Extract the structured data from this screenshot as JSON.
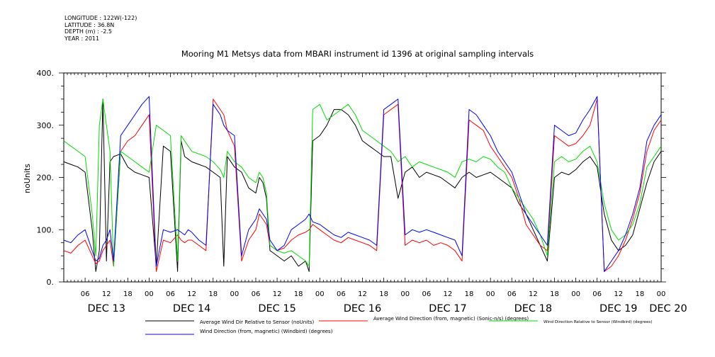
{
  "header": {
    "longitude": "LONGITUDE : 122W(-122)",
    "latitude": "LATITUDE : 36.8N",
    "depth": "DEPTH (m) : -2.5",
    "year": "YEAR : 2011",
    "title": "Mooring M1 Metsys data from MBARI instrument id 1396 at original sampling intervals"
  },
  "colors": {
    "black": "#000000",
    "red": "#ff0000",
    "green": "#00dd00",
    "blue": "#0000ff"
  },
  "chart_data": {
    "type": "line",
    "title": "Mooring M1 Metsys data from MBARI instrument id 1396 at original sampling intervals",
    "ylabel": "noUnits",
    "ylim": [
      0,
      400
    ],
    "y_ticks": [
      "0.",
      "100.",
      "200.",
      "300.",
      "400."
    ],
    "xlim_hours": [
      0,
      168
    ],
    "x_tick_labels": [
      "06",
      "12",
      "18",
      "00",
      "06",
      "12",
      "18",
      "00",
      "06",
      "12",
      "18",
      "00",
      "06",
      "12",
      "18",
      "00",
      "06",
      "12",
      "18",
      "00",
      "06",
      "12",
      "18",
      "00",
      "06",
      "12",
      "18",
      "00"
    ],
    "day_labels": [
      "DEC 13",
      "DEC 14",
      "DEC 15",
      "DEC 16",
      "DEC 17",
      "DEC 18",
      "DEC 19",
      "DEC 20"
    ],
    "grid": false,
    "legend_position": "bottom",
    "x_hours": [
      0,
      2,
      4,
      6,
      8,
      9,
      10,
      11,
      12,
      13,
      14,
      16,
      18,
      20,
      22,
      24,
      26,
      28,
      30,
      32,
      33,
      34,
      35,
      36,
      38,
      40,
      42,
      44,
      45,
      46,
      48,
      50,
      52,
      54,
      55,
      56,
      57,
      58,
      60,
      62,
      64,
      66,
      68,
      69,
      70,
      72,
      74,
      76,
      78,
      80,
      82,
      84,
      86,
      88,
      90,
      92,
      94,
      96,
      98,
      100,
      102,
      104,
      106,
      108,
      110,
      112,
      114,
      116,
      118,
      120,
      122,
      124,
      126,
      128,
      130,
      132,
      134,
      136,
      138,
      140,
      142,
      144,
      146,
      148,
      150,
      152,
      154,
      156,
      158,
      160,
      162,
      164,
      166,
      168
    ],
    "series": [
      {
        "name": "Average Wind Dir Relative to Sensor (noUnits)",
        "color": "black",
        "values": [
          230,
          225,
          220,
          210,
          100,
          20,
          60,
          350,
          40,
          230,
          240,
          245,
          220,
          210,
          205,
          200,
          30,
          260,
          250,
          20,
          270,
          240,
          235,
          230,
          225,
          220,
          210,
          200,
          30,
          240,
          220,
          210,
          180,
          170,
          200,
          190,
          160,
          60,
          50,
          40,
          50,
          30,
          40,
          20,
          270,
          280,
          300,
          330,
          330,
          320,
          300,
          270,
          260,
          250,
          240,
          240,
          160,
          210,
          220,
          200,
          210,
          205,
          200,
          190,
          180,
          200,
          210,
          200,
          205,
          210,
          200,
          190,
          180,
          150,
          130,
          100,
          70,
          40,
          200,
          210,
          205,
          215,
          230,
          240,
          220,
          130,
          80,
          60,
          70,
          90,
          140,
          190,
          230,
          250
        ]
      },
      {
        "name": "Average Wind Direction (from, magnetic) (Sonic-n/s) (degrees)",
        "color": "red",
        "values": [
          60,
          55,
          70,
          80,
          50,
          35,
          40,
          60,
          70,
          80,
          30,
          250,
          270,
          280,
          300,
          320,
          20,
          80,
          75,
          90,
          80,
          75,
          80,
          80,
          70,
          60,
          350,
          330,
          320,
          290,
          260,
          40,
          80,
          100,
          130,
          120,
          110,
          70,
          60,
          65,
          80,
          90,
          95,
          100,
          110,
          100,
          90,
          80,
          75,
          85,
          80,
          75,
          70,
          60,
          320,
          330,
          340,
          70,
          80,
          75,
          80,
          70,
          75,
          70,
          60,
          40,
          310,
          300,
          290,
          260,
          240,
          220,
          200,
          160,
          110,
          90,
          70,
          60,
          280,
          270,
          260,
          265,
          280,
          300,
          350,
          20,
          30,
          50,
          80,
          120,
          170,
          250,
          290,
          310
        ]
      },
      {
        "name": "Wind Direction Relative to Sensor (Windbird) (degrees)",
        "color": "green",
        "values": [
          270,
          260,
          250,
          240,
          130,
          50,
          300,
          350,
          300,
          250,
          30,
          250,
          240,
          230,
          220,
          210,
          300,
          290,
          280,
          40,
          280,
          270,
          260,
          250,
          245,
          240,
          230,
          215,
          200,
          250,
          230,
          220,
          200,
          190,
          210,
          200,
          170,
          70,
          60,
          55,
          60,
          50,
          40,
          30,
          330,
          340,
          310,
          320,
          330,
          340,
          320,
          290,
          280,
          270,
          260,
          250,
          230,
          240,
          220,
          230,
          225,
          220,
          215,
          210,
          200,
          230,
          235,
          230,
          240,
          235,
          220,
          210,
          180,
          160,
          140,
          120,
          90,
          50,
          230,
          240,
          230,
          235,
          250,
          260,
          230,
          150,
          100,
          80,
          90,
          110,
          150,
          220,
          240,
          260
        ]
      },
      {
        "name": "Wind Direction (from, magnetic) (Windbird) (degrees)",
        "color": "blue",
        "values": [
          80,
          75,
          90,
          100,
          60,
          40,
          45,
          70,
          80,
          100,
          40,
          280,
          300,
          320,
          340,
          355,
          30,
          100,
          95,
          100,
          95,
          90,
          100,
          95,
          80,
          70,
          340,
          320,
          300,
          290,
          280,
          50,
          100,
          120,
          140,
          130,
          120,
          80,
          60,
          70,
          100,
          110,
          120,
          130,
          115,
          110,
          100,
          90,
          85,
          95,
          90,
          85,
          80,
          70,
          330,
          340,
          350,
          90,
          100,
          95,
          100,
          95,
          90,
          85,
          80,
          50,
          330,
          320,
          300,
          280,
          250,
          230,
          210,
          170,
          130,
          110,
          90,
          70,
          300,
          290,
          280,
          285,
          310,
          330,
          355,
          20,
          40,
          60,
          90,
          130,
          180,
          270,
          300,
          320
        ]
      }
    ]
  }
}
